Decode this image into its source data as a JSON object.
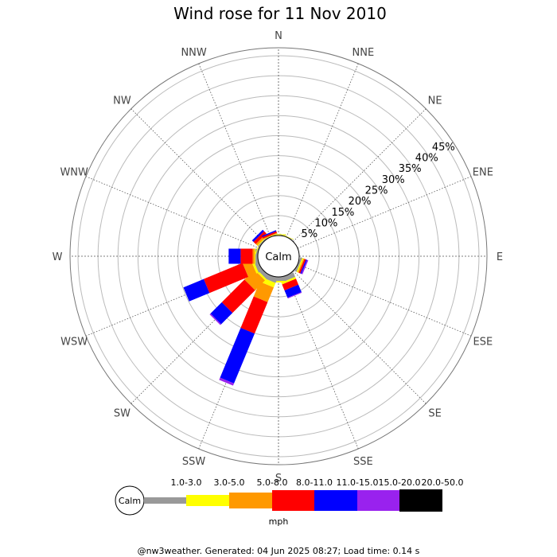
{
  "chart_data": {
    "type": "wind-rose",
    "title": "Wind rose for 11 Nov 2010",
    "calm_label": "Calm",
    "directions": [
      "N",
      "NNE",
      "NE",
      "ENE",
      "E",
      "ESE",
      "SE",
      "SSE",
      "S",
      "SSW",
      "SW",
      "WSW",
      "W",
      "WNW",
      "NW",
      "NNW"
    ],
    "radial_ticks": [
      5,
      10,
      15,
      20,
      25,
      30,
      35,
      40,
      45
    ],
    "radial_tick_labels": [
      "5%",
      "10%",
      "15%",
      "20%",
      "25%",
      "30%",
      "35%",
      "40%",
      "45%"
    ],
    "radial_max": 47,
    "bins": [
      {
        "label": "1.0-3.0",
        "color": "#999999"
      },
      {
        "label": "3.0-5.0",
        "color": "#ffff00"
      },
      {
        "label": "5.0-8.0",
        "color": "#ff9900"
      },
      {
        "label": "8.0-11.0",
        "color": "#ff0000"
      },
      {
        "label": "11.0-15.0",
        "color": "#0000ff"
      },
      {
        "label": "15.0-20.0",
        "color": "#9922ee"
      },
      {
        "label": "20.0-50.0",
        "color": "#000000"
      }
    ],
    "units": "mph",
    "series": [
      {
        "dir": "N",
        "values": [
          0.1,
          0.2,
          0,
          0,
          0,
          0,
          0
        ]
      },
      {
        "dir": "NNE",
        "values": [
          0.1,
          0.1,
          0,
          0,
          0,
          0,
          0
        ]
      },
      {
        "dir": "NE",
        "values": [
          0,
          0,
          0,
          0,
          0,
          0,
          0
        ]
      },
      {
        "dir": "ENE",
        "values": [
          0,
          0,
          0,
          0,
          0,
          0,
          0
        ]
      },
      {
        "dir": "E",
        "values": [
          0,
          0,
          0,
          0,
          0,
          0,
          0
        ]
      },
      {
        "dir": "ESE",
        "values": [
          0.5,
          0.3,
          0.3,
          0.4,
          0.3,
          0.3,
          0
        ]
      },
      {
        "dir": "SE",
        "values": [
          0.2,
          0,
          0,
          0,
          0,
          0,
          0
        ]
      },
      {
        "dir": "SSE",
        "values": [
          1.2,
          0.5,
          0,
          1.6,
          2.0,
          0.2,
          0
        ]
      },
      {
        "dir": "S",
        "values": [
          1.0,
          0.4,
          0,
          0,
          0,
          0,
          0
        ]
      },
      {
        "dir": "SSW",
        "values": [
          1.3,
          1.2,
          4.0,
          8.5,
          13.5,
          0.6,
          0
        ]
      },
      {
        "dir": "SW",
        "values": [
          1.0,
          0.5,
          3.5,
          8.0,
          4.0,
          0.3,
          0
        ]
      },
      {
        "dir": "WSW",
        "values": [
          1.0,
          0.6,
          2.2,
          10.5,
          5.5,
          0,
          0
        ]
      },
      {
        "dir": "W",
        "values": [
          0.6,
          0.2,
          0.5,
          3.0,
          3.0,
          0,
          0
        ]
      },
      {
        "dir": "WNW",
        "values": [
          0.3,
          0.2,
          0,
          0,
          0,
          0,
          0
        ]
      },
      {
        "dir": "NW",
        "values": [
          0.3,
          0.2,
          0.5,
          0.8,
          0.5,
          0,
          0
        ]
      },
      {
        "dir": "NNW",
        "values": [
          0.1,
          0.1,
          0.2,
          0.4,
          0.3,
          0,
          0
        ]
      }
    ]
  },
  "footer": "@nw3weather. Generated: 04 Jun 2025 08:27; Load time: 0.14 s"
}
